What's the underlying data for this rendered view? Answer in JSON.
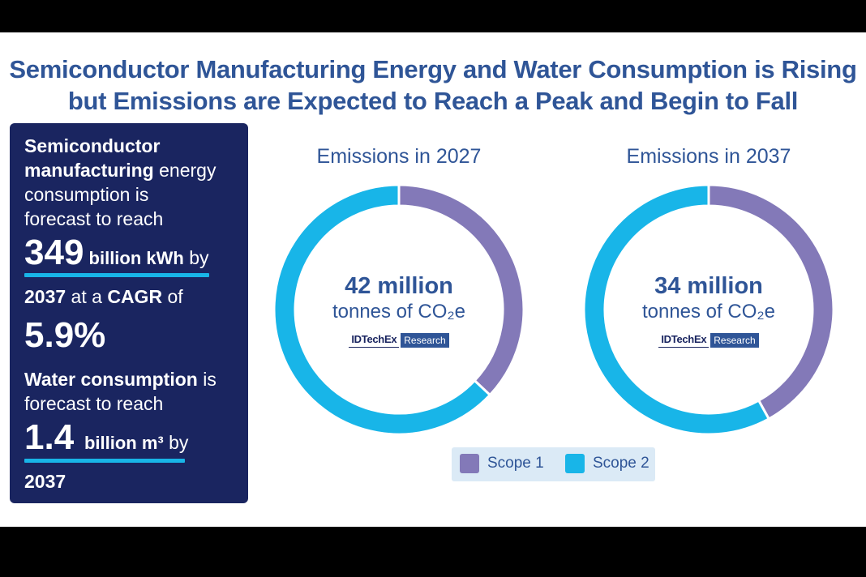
{
  "title_line1": "Semiconductor Manufacturing Energy and Water Consumption is Rising",
  "title_line2": "but Emissions are Expected to Reach a Peak and Begin to Fall",
  "panel": {
    "l1": "Semiconductor",
    "l2a": "manufacturing",
    "l2b": " energy",
    "l3": "consumption is",
    "l4": "forecast to reach",
    "energy_value": "349",
    "energy_unit": " billion kWh",
    "by1": " by",
    "year1": "2037",
    "cagr_pre": " at a ",
    "cagr_label": "CAGR",
    "cagr_post": " of",
    "cagr_value": "5.9%",
    "water_label": "Water consumption",
    "water_is": " is",
    "water_forecast": "forecast to reach",
    "water_value": "1.4",
    "water_unit": "billion m³",
    "by2": " by",
    "year2": "2037"
  },
  "chart_data": [
    {
      "type": "pie",
      "title": "Emissions in 2027",
      "center_value": "42 million",
      "center_unit": "tonnes of CO₂e",
      "total_million_tonnes": 42,
      "series": [
        {
          "name": "Scope 1",
          "value": 37
        },
        {
          "name": "Scope 2",
          "value": 63
        }
      ]
    },
    {
      "type": "pie",
      "title": "Emissions in 2037",
      "center_value": "34 million",
      "center_unit": "tonnes of CO₂e",
      "total_million_tonnes": 34,
      "series": [
        {
          "name": "Scope 1",
          "value": 42
        },
        {
          "name": "Scope 2",
          "value": 58
        }
      ]
    }
  ],
  "logo": {
    "brand": "IDTechEx",
    "tag": "Research"
  },
  "legend": [
    {
      "name": "Scope 1",
      "color": "#8379b8"
    },
    {
      "name": "Scope 2",
      "color": "#18b5e8"
    }
  ],
  "colors": {
    "scope1": "#8379b8",
    "scope2": "#18b5e8",
    "navy": "#1a2560",
    "title": "#2f5597"
  }
}
